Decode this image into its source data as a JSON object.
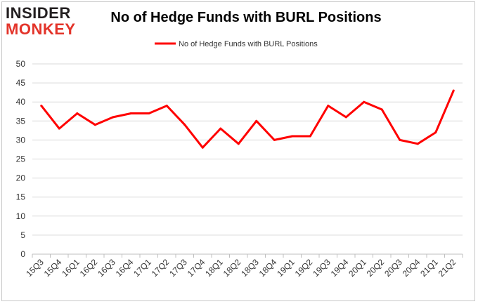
{
  "logo": {
    "line1": "INSIDER",
    "line2": "MONKEY"
  },
  "colors": {
    "series": "#ff0000",
    "grid": "#d9d9d9",
    "axis": "#bfbfbf",
    "logo_dark": "#231f20",
    "logo_red": "#e3342a"
  },
  "chart_data": {
    "type": "line",
    "title": "No of Hedge Funds with BURL Positions",
    "xlabel": "",
    "ylabel": "",
    "ylim": [
      0,
      50
    ],
    "yticks": [
      0,
      5,
      10,
      15,
      20,
      25,
      30,
      35,
      40,
      45,
      50
    ],
    "grid": true,
    "legend_position": "top-center",
    "categories": [
      "15Q3",
      "15Q4",
      "16Q1",
      "16Q2",
      "16Q3",
      "16Q4",
      "17Q1",
      "17Q2",
      "17Q3",
      "17Q4",
      "18Q1",
      "18Q2",
      "18Q3",
      "18Q4",
      "19Q1",
      "19Q2",
      "19Q3",
      "19Q4",
      "20Q1",
      "20Q2",
      "20Q3",
      "20Q4",
      "21Q1",
      "21Q2"
    ],
    "series": [
      {
        "name": "No of Hedge Funds with BURL Positions",
        "values": [
          39,
          33,
          37,
          34,
          36,
          37,
          37,
          39,
          34,
          28,
          33,
          29,
          35,
          30,
          31,
          31,
          39,
          36,
          40,
          38,
          30,
          29,
          32,
          43
        ]
      }
    ]
  }
}
